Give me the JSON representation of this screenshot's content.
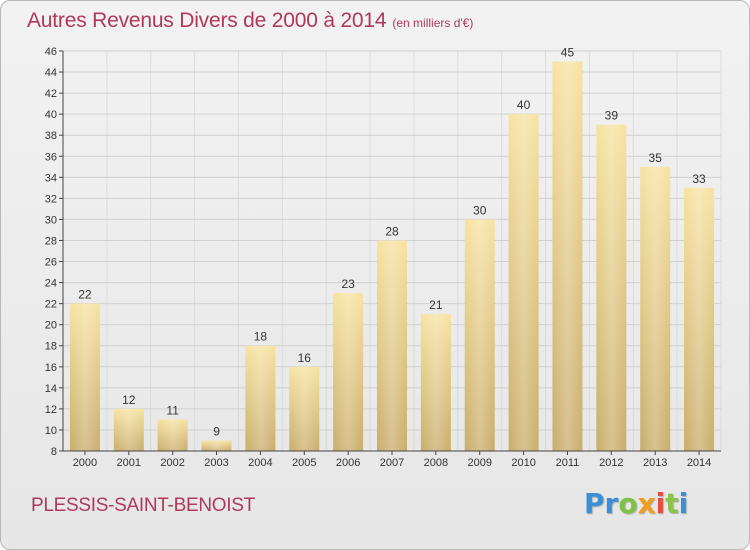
{
  "header": {
    "title": "Autres Revenus Divers de 2000 à 2014",
    "unit": "(en milliers d'€)"
  },
  "footer": {
    "town": "PLESSIS-SAINT-BENOIST",
    "logo_letters": [
      "P",
      "r",
      "o",
      "x",
      "i",
      "t",
      "i"
    ],
    "logo_colors": [
      "#3a8fd6",
      "#3a8fd6",
      "#7cc243",
      "#f39c1c",
      "#e84c3d",
      "#8bc34a",
      "#3a8fd6"
    ]
  },
  "colors": {
    "title": "#b0395a",
    "bar_top": "#f7e2a0",
    "bar_bottom": "#c9ad6a",
    "grid": "#d0d0d0",
    "axis": "#444444"
  },
  "chart_data": {
    "type": "bar",
    "title": "Autres Revenus Divers de 2000 à 2014",
    "xlabel": "",
    "ylabel": "",
    "categories": [
      "2000",
      "2001",
      "2002",
      "2003",
      "2004",
      "2005",
      "2006",
      "2007",
      "2008",
      "2009",
      "2010",
      "2011",
      "2012",
      "2013",
      "2014"
    ],
    "values": [
      22,
      12,
      11,
      9,
      18,
      16,
      23,
      28,
      21,
      30,
      40,
      45,
      39,
      35,
      33
    ],
    "ylim": [
      8,
      46
    ],
    "yticks": [
      8,
      10,
      12,
      14,
      16,
      18,
      20,
      22,
      24,
      26,
      28,
      30,
      32,
      34,
      36,
      38,
      40,
      42,
      44,
      46
    ],
    "grid": true,
    "legend": "none"
  }
}
